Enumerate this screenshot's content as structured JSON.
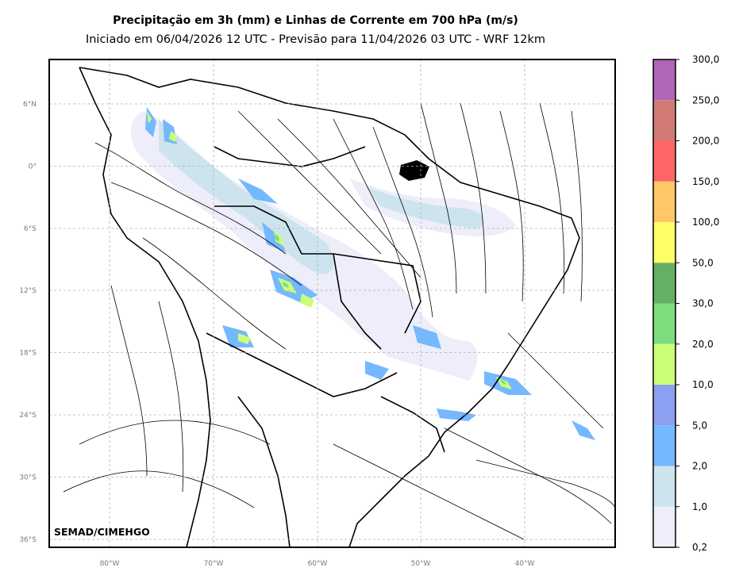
{
  "header": {
    "title": "Precipitação em 3h (mm) e Linhas de Corrente em 700 hPa (m/s)",
    "subtitle": "Iniciado em 06/04/2026 12 UTC - Previsão para 11/04/2026 03 UTC - WRF 12km"
  },
  "map": {
    "lat_labels": [
      "6°N",
      "0°",
      "6°S",
      "12°S",
      "18°S",
      "24°S",
      "30°S",
      "36°S"
    ],
    "lon_labels": [
      "80°W",
      "70°W",
      "60°W",
      "50°W",
      "40°W"
    ],
    "credit": "SEMAD/CIMEHGO"
  },
  "colorbar": {
    "labels": [
      "0,2",
      "1,0",
      "2,0",
      "5,0",
      "10,0",
      "20,0",
      "30,0",
      "50,0",
      "100,0",
      "150,0",
      "200,0",
      "250,0",
      "300,0"
    ],
    "colors": [
      "#eeeefa",
      "#cde4ee",
      "#74b8ff",
      "#8c9ff0",
      "#ccff77",
      "#7edd7e",
      "#66b066",
      "#ffff66",
      "#ffc766",
      "#ff6666",
      "#d17a74",
      "#b066b6"
    ]
  }
}
